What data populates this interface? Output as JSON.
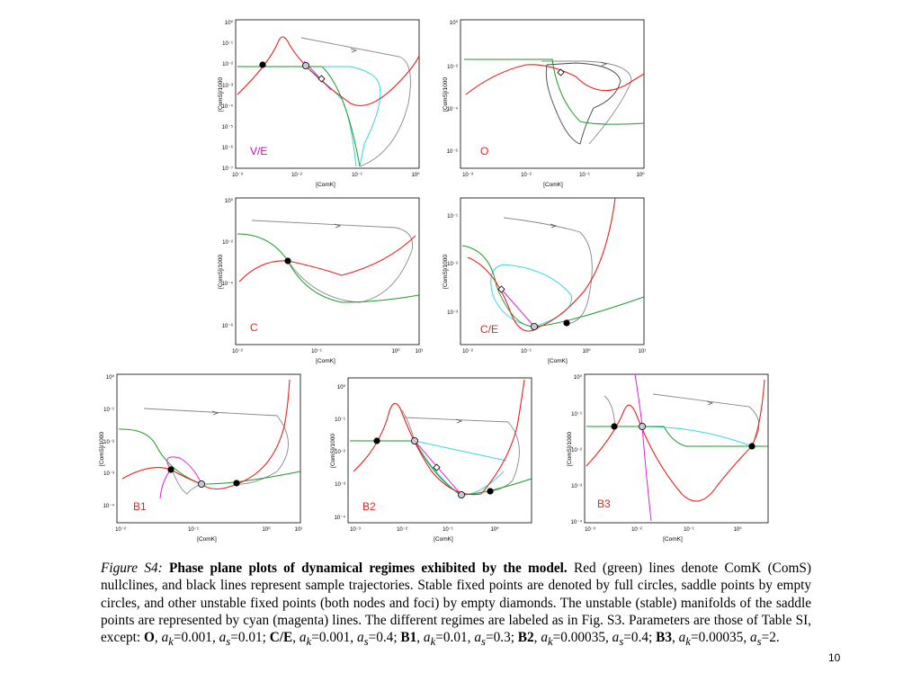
{
  "figure": {
    "panels": [
      {
        "id": "VE",
        "regime_label": "V/E",
        "regime_label_color": "#cc00cc",
        "y_axis_label": "[ComS]/1000",
        "x_axis_label": "[ComK]",
        "x_ticks": [
          "10⁻³",
          "10⁻²",
          "10⁻¹",
          "10⁰"
        ],
        "y_ticks": [
          "10⁰",
          "10⁻¹",
          "10⁻²",
          "10⁻³",
          "10⁻⁴",
          "10⁻⁵",
          "10⁻⁶",
          "10⁻⁷"
        ]
      },
      {
        "id": "O",
        "regime_label": "O",
        "regime_label_color": "#e8221f",
        "y_axis_label": "[ComS]/1000",
        "x_axis_label": "[ComK]",
        "x_ticks": [
          "10⁻³",
          "10⁻²",
          "10⁻¹",
          "10⁰"
        ],
        "y_ticks": [
          "10⁰",
          "10⁻²",
          "10⁻⁴",
          "10⁻⁶"
        ]
      },
      {
        "id": "C",
        "regime_label": "C",
        "regime_label_color": "#e8221f",
        "y_axis_label": "[ComS]/1000",
        "x_axis_label": "[ComK]",
        "x_ticks": [
          "10⁻²",
          "10⁻¹",
          "10⁰",
          "10¹"
        ],
        "y_ticks": [
          "10⁰",
          "10⁻²",
          "10⁻⁴",
          "10⁻⁶"
        ]
      },
      {
        "id": "CE",
        "regime_label": "C/E",
        "regime_label_color": "#e8221f",
        "y_axis_label": "[ComS]/1000",
        "x_axis_label": "[ComK]",
        "x_ticks": [
          "10⁻²",
          "10⁻¹",
          "10⁰",
          "10¹"
        ],
        "y_ticks": [
          "10⁻¹",
          "10⁻²",
          "10⁻³"
        ]
      },
      {
        "id": "B1",
        "regime_label": "B1",
        "regime_label_color": "#e8221f",
        "y_axis_label": "[ComS]/1000",
        "x_axis_label": "[ComK]",
        "x_ticks": [
          "10⁻²",
          "10⁻¹",
          "10⁰",
          "10¹"
        ],
        "y_ticks": [
          "10⁰",
          "10⁻¹",
          "10⁻²",
          "10⁻³",
          "10⁻⁴"
        ]
      },
      {
        "id": "B2",
        "regime_label": "B2",
        "regime_label_color": "#e8221f",
        "y_axis_label": "[ComS]/1000",
        "x_axis_label": "[ComK]",
        "x_ticks": [
          "10⁻³",
          "10⁻²",
          "10⁻¹",
          "10⁰"
        ],
        "y_ticks": [
          "10⁰",
          "10⁻¹",
          "10⁻²",
          "10⁻³",
          "10⁻⁴"
        ]
      },
      {
        "id": "B3",
        "regime_label": "B3",
        "regime_label_color": "#e8221f",
        "y_axis_label": "[ComS]/1000",
        "x_axis_label": "[ComK]",
        "x_ticks": [
          "10⁻³",
          "10⁻²",
          "10⁻¹",
          "10⁰"
        ],
        "y_ticks": [
          "10⁰",
          "10⁻¹",
          "10⁻²",
          "10⁻³",
          "10⁻⁴"
        ]
      }
    ]
  },
  "colors": {
    "comk_nullcline": "#e8221f",
    "coms_nullcline": "#1f9a2a",
    "trajectory": "#888888",
    "unstable_manifold": "#33d7e0",
    "stable_manifold": "#e020e0",
    "stable_point": "#000000",
    "saddle_point_fill": "#c8c8d8"
  },
  "caption": {
    "figure_label": "Figure S4:",
    "title": "Phase plane plots of dynamical regimes exhibited by the model.",
    "body": "Red (green) lines denote ComK (ComS) nullclines, and black lines represent sample trajectories. Stable fixed points are denoted by full circles, saddle points by empty circles, and other unstable fixed points (both nodes and foci) by empty diamonds. The unstable (stable) manifolds of the saddle points are represented by cyan (magenta) lines. The different regimes are labeled as in Fig. S3. Parameters are those of Table SI, except:",
    "params": [
      {
        "regime": "O",
        "ak": "0.001",
        "as": "0.01"
      },
      {
        "regime": "C/E",
        "ak": "0.001",
        "as": "0.4"
      },
      {
        "regime": "B1",
        "ak": "0.01",
        "as": "0.3"
      },
      {
        "regime": "B2",
        "ak": "0.00035",
        "as": "0.4"
      },
      {
        "regime": "B3",
        "ak": "0.00035",
        "as": "2"
      }
    ]
  },
  "page_number": "10"
}
